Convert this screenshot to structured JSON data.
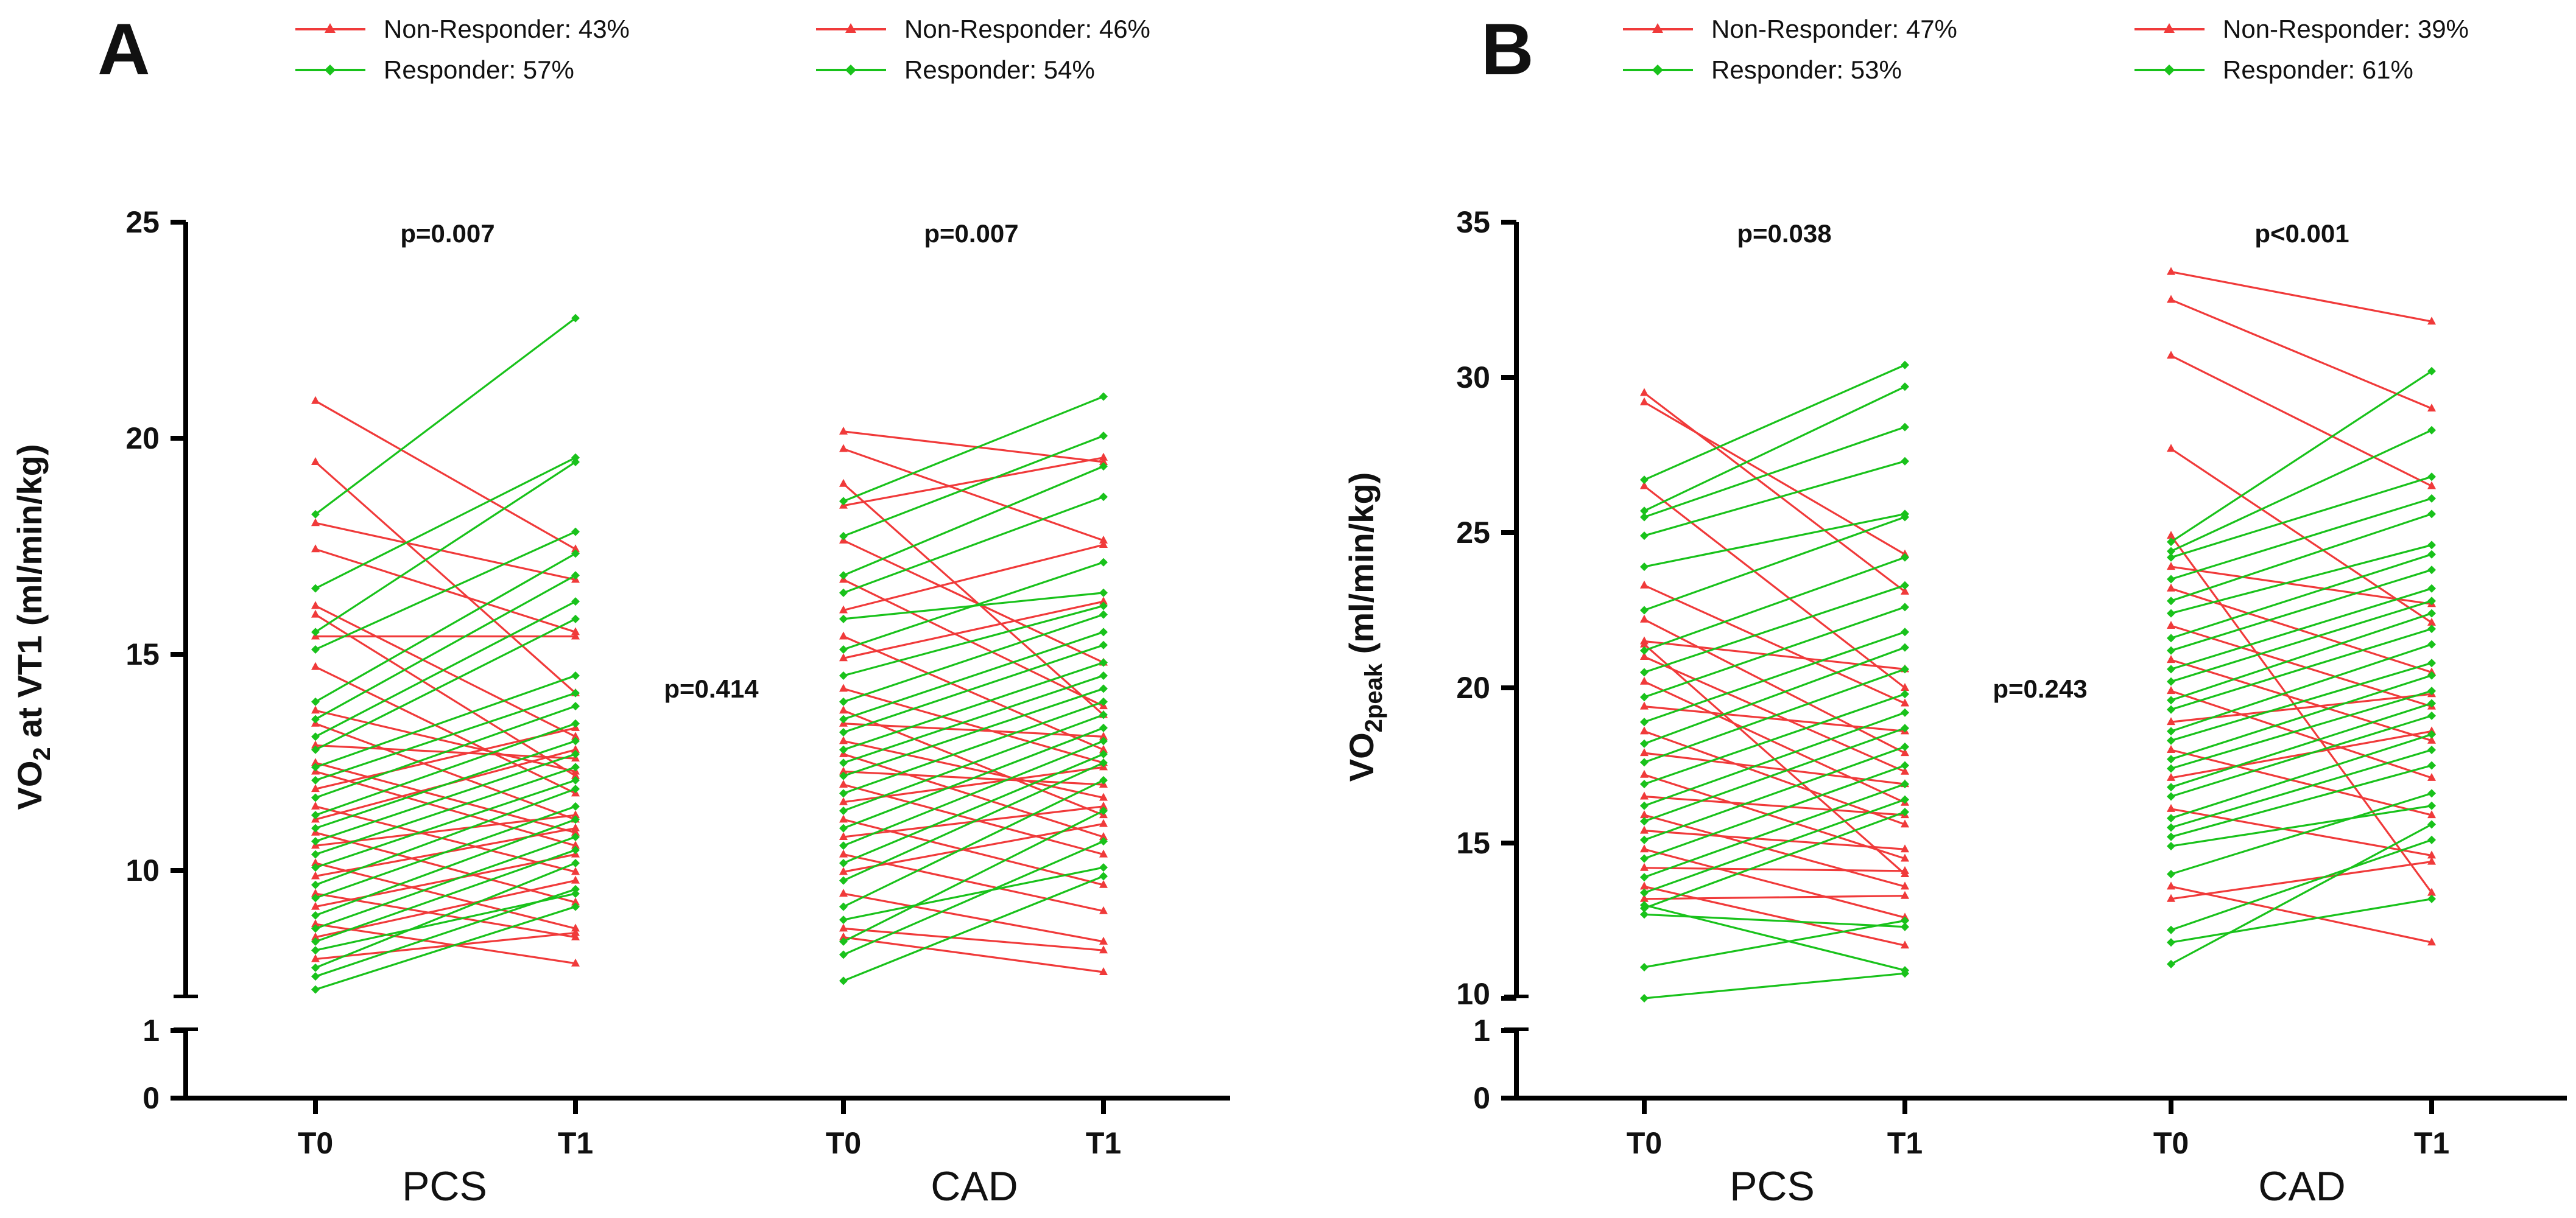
{
  "colors": {
    "responder": "#19c21b",
    "non_responder": "#f03a3a",
    "axis": "#000000"
  },
  "chart_data": [
    {
      "panel": "A",
      "type": "paired-line",
      "ylabel_pre": "VO",
      "ylabel_sub": "2",
      "ylabel_post": " at VT1 (ml/min/kg)",
      "yticks_upper": [
        "10",
        "15",
        "20",
        "25"
      ],
      "ylim_upper": [
        7.2,
        25
      ],
      "yticks_lower": [
        "0",
        "1"
      ],
      "xticks": [
        "T0",
        "T1",
        "T0",
        "T1"
      ],
      "groups": [
        "PCS",
        "CAD"
      ],
      "legend": [
        {
          "label": "Non-Responder: 43%",
          "type": "non_responder"
        },
        {
          "label": "Responder: 57%",
          "type": "responder"
        },
        {
          "label": "Non-Responder: 46%",
          "type": "non_responder"
        },
        {
          "label": "Responder: 54%",
          "type": "responder"
        }
      ],
      "pvalues": {
        "left": "p=0.007",
        "middle": "p=0.414",
        "right": "p=0.007"
      },
      "pcs_pairs": [
        {
          "t0": 20.9,
          "t1": 17.5,
          "r": 0
        },
        {
          "t0": 19.5,
          "t1": 14.2,
          "r": 0
        },
        {
          "t0": 18.3,
          "t1": 22.8,
          "r": 1
        },
        {
          "t0": 18.1,
          "t1": 16.8,
          "r": 0
        },
        {
          "t0": 17.5,
          "t1": 15.6,
          "r": 0
        },
        {
          "t0": 16.6,
          "t1": 19.6,
          "r": 1
        },
        {
          "t0": 16.2,
          "t1": 13.2,
          "r": 0
        },
        {
          "t0": 16.0,
          "t1": 12.3,
          "r": 0
        },
        {
          "t0": 15.6,
          "t1": 19.5,
          "r": 1
        },
        {
          "t0": 15.5,
          "t1": 15.5,
          "r": 0
        },
        {
          "t0": 15.2,
          "t1": 17.9,
          "r": 1
        },
        {
          "t0": 14.8,
          "t1": 11.9,
          "r": 0
        },
        {
          "t0": 14.0,
          "t1": 17.4,
          "r": 1
        },
        {
          "t0": 13.8,
          "t1": 12.4,
          "r": 0
        },
        {
          "t0": 13.6,
          "t1": 16.9,
          "r": 1
        },
        {
          "t0": 13.5,
          "t1": 11.3,
          "r": 0
        },
        {
          "t0": 13.2,
          "t1": 16.3,
          "r": 1
        },
        {
          "t0": 13.0,
          "t1": 12.7,
          "r": 0
        },
        {
          "t0": 12.9,
          "t1": 15.9,
          "r": 1
        },
        {
          "t0": 12.6,
          "t1": 11.0,
          "r": 0
        },
        {
          "t0": 12.5,
          "t1": 14.6,
          "r": 1
        },
        {
          "t0": 12.4,
          "t1": 10.7,
          "r": 0
        },
        {
          "t0": 12.2,
          "t1": 14.2,
          "r": 1
        },
        {
          "t0": 12.0,
          "t1": 13.4,
          "r": 0
        },
        {
          "t0": 11.8,
          "t1": 13.9,
          "r": 1
        },
        {
          "t0": 11.6,
          "t1": 10.1,
          "r": 0
        },
        {
          "t0": 11.4,
          "t1": 13.5,
          "r": 1
        },
        {
          "t0": 11.3,
          "t1": 12.9,
          "r": 0
        },
        {
          "t0": 11.1,
          "t1": 13.1,
          "r": 1
        },
        {
          "t0": 11.0,
          "t1": 9.4,
          "r": 0
        },
        {
          "t0": 10.8,
          "t1": 12.8,
          "r": 1
        },
        {
          "t0": 10.7,
          "t1": 11.4,
          "r": 0
        },
        {
          "t0": 10.5,
          "t1": 12.5,
          "r": 1
        },
        {
          "t0": 10.3,
          "t1": 8.8,
          "r": 0
        },
        {
          "t0": 10.2,
          "t1": 12.2,
          "r": 1
        },
        {
          "t0": 10.0,
          "t1": 11.1,
          "r": 0
        },
        {
          "t0": 9.8,
          "t1": 12.0,
          "r": 1
        },
        {
          "t0": 9.6,
          "t1": 8.6,
          "r": 0
        },
        {
          "t0": 9.5,
          "t1": 11.6,
          "r": 1
        },
        {
          "t0": 9.3,
          "t1": 10.5,
          "r": 0
        },
        {
          "t0": 9.1,
          "t1": 11.3,
          "r": 1
        },
        {
          "t0": 8.9,
          "t1": 8.0,
          "r": 0
        },
        {
          "t0": 8.8,
          "t1": 10.9,
          "r": 1
        },
        {
          "t0": 8.6,
          "t1": 9.9,
          "r": 0
        },
        {
          "t0": 8.5,
          "t1": 10.6,
          "r": 1
        },
        {
          "t0": 8.3,
          "t1": 9.6,
          "r": 1
        },
        {
          "t0": 8.1,
          "t1": 8.7,
          "r": 0
        },
        {
          "t0": 7.9,
          "t1": 10.3,
          "r": 1
        },
        {
          "t0": 7.7,
          "t1": 9.7,
          "r": 1
        },
        {
          "t0": 7.4,
          "t1": 9.3,
          "r": 1
        }
      ],
      "cad_pairs": [
        {
          "t0": 20.2,
          "t1": 19.5,
          "r": 0
        },
        {
          "t0": 19.8,
          "t1": 17.7,
          "r": 0
        },
        {
          "t0": 19.0,
          "t1": 13.7,
          "r": 0
        },
        {
          "t0": 18.6,
          "t1": 21.0,
          "r": 1
        },
        {
          "t0": 18.5,
          "t1": 19.6,
          "r": 0
        },
        {
          "t0": 17.8,
          "t1": 20.1,
          "r": 1
        },
        {
          "t0": 17.7,
          "t1": 14.9,
          "r": 0
        },
        {
          "t0": 16.9,
          "t1": 19.4,
          "r": 1
        },
        {
          "t0": 16.8,
          "t1": 13.9,
          "r": 0
        },
        {
          "t0": 16.5,
          "t1": 18.7,
          "r": 1
        },
        {
          "t0": 16.1,
          "t1": 17.6,
          "r": 0
        },
        {
          "t0": 15.9,
          "t1": 16.5,
          "r": 1
        },
        {
          "t0": 15.5,
          "t1": 12.9,
          "r": 0
        },
        {
          "t0": 15.2,
          "t1": 17.2,
          "r": 1
        },
        {
          "t0": 15.0,
          "t1": 16.3,
          "r": 0
        },
        {
          "t0": 14.6,
          "t1": 16.2,
          "r": 1
        },
        {
          "t0": 14.3,
          "t1": 12.6,
          "r": 0
        },
        {
          "t0": 14.0,
          "t1": 16.0,
          "r": 1
        },
        {
          "t0": 13.8,
          "t1": 11.4,
          "r": 0
        },
        {
          "t0": 13.6,
          "t1": 15.6,
          "r": 1
        },
        {
          "t0": 13.5,
          "t1": 13.2,
          "r": 0
        },
        {
          "t0": 13.3,
          "t1": 15.3,
          "r": 1
        },
        {
          "t0": 13.1,
          "t1": 11.8,
          "r": 0
        },
        {
          "t0": 12.9,
          "t1": 14.9,
          "r": 1
        },
        {
          "t0": 12.8,
          "t1": 10.9,
          "r": 0
        },
        {
          "t0": 12.6,
          "t1": 14.6,
          "r": 1
        },
        {
          "t0": 12.4,
          "t1": 12.1,
          "r": 0
        },
        {
          "t0": 12.3,
          "t1": 14.3,
          "r": 1
        },
        {
          "t0": 12.1,
          "t1": 10.5,
          "r": 0
        },
        {
          "t0": 11.9,
          "t1": 14.0,
          "r": 1
        },
        {
          "t0": 11.7,
          "t1": 12.5,
          "r": 0
        },
        {
          "t0": 11.5,
          "t1": 13.7,
          "r": 1
        },
        {
          "t0": 11.3,
          "t1": 9.8,
          "r": 0
        },
        {
          "t0": 11.1,
          "t1": 13.4,
          "r": 1
        },
        {
          "t0": 10.9,
          "t1": 11.6,
          "r": 0
        },
        {
          "t0": 10.7,
          "t1": 13.1,
          "r": 1
        },
        {
          "t0": 10.5,
          "t1": 9.2,
          "r": 0
        },
        {
          "t0": 10.3,
          "t1": 12.8,
          "r": 1
        },
        {
          "t0": 10.1,
          "t1": 11.2,
          "r": 0
        },
        {
          "t0": 9.9,
          "t1": 12.6,
          "r": 1
        },
        {
          "t0": 9.6,
          "t1": 8.5,
          "r": 0
        },
        {
          "t0": 9.3,
          "t1": 12.2,
          "r": 1
        },
        {
          "t0": 9.0,
          "t1": 10.2,
          "r": 1
        },
        {
          "t0": 8.8,
          "t1": 8.3,
          "r": 0
        },
        {
          "t0": 8.5,
          "t1": 11.5,
          "r": 1
        },
        {
          "t0": 8.2,
          "t1": 10.8,
          "r": 1
        },
        {
          "t0": 7.6,
          "t1": 10.0,
          "r": 1
        },
        {
          "t0": 8.6,
          "t1": 7.8,
          "r": 0
        }
      ]
    },
    {
      "panel": "B",
      "type": "paired-line",
      "ylabel_pre": "VO",
      "ylabel_sub": "2peak",
      "ylabel_post": " (ml/min/kg)",
      "yticks_upper": [
        "15",
        "20",
        "25",
        "30",
        "35"
      ],
      "ylim_upper": [
        10,
        35
      ],
      "yticks_lower": [
        "0",
        "1"
      ],
      "extra_upper_tick": "10",
      "xticks": [
        "T0",
        "T1",
        "T0",
        "T1"
      ],
      "groups": [
        "PCS",
        "CAD"
      ],
      "legend": [
        {
          "label": "Non-Responder: 47%",
          "type": "non_responder"
        },
        {
          "label": "Responder: 53%",
          "type": "responder"
        },
        {
          "label": "Non-Responder: 39%",
          "type": "non_responder"
        },
        {
          "label": "Responder: 61%",
          "type": "responder"
        }
      ],
      "pvalues": {
        "left": "p=0.038",
        "middle": "p=0.243",
        "right": "p<0.001"
      },
      "pcs_pairs": [
        {
          "t0": 29.5,
          "t1": 23.1,
          "r": 0
        },
        {
          "t0": 29.2,
          "t1": 24.3,
          "r": 0
        },
        {
          "t0": 26.7,
          "t1": 30.4,
          "r": 1
        },
        {
          "t0": 26.5,
          "t1": 20.0,
          "r": 0
        },
        {
          "t0": 25.7,
          "t1": 29.7,
          "r": 1
        },
        {
          "t0": 25.5,
          "t1": 28.4,
          "r": 1
        },
        {
          "t0": 24.9,
          "t1": 27.3,
          "r": 1
        },
        {
          "t0": 23.9,
          "t1": 25.6,
          "r": 1
        },
        {
          "t0": 23.3,
          "t1": 19.5,
          "r": 0
        },
        {
          "t0": 22.5,
          "t1": 25.5,
          "r": 1
        },
        {
          "t0": 22.2,
          "t1": 17.9,
          "r": 0
        },
        {
          "t0": 21.5,
          "t1": 20.6,
          "r": 0
        },
        {
          "t0": 21.2,
          "t1": 24.2,
          "r": 1
        },
        {
          "t0": 21.0,
          "t1": 17.3,
          "r": 0
        },
        {
          "t0": 20.5,
          "t1": 23.3,
          "r": 1
        },
        {
          "t0": 20.2,
          "t1": 16.3,
          "r": 0
        },
        {
          "t0": 19.7,
          "t1": 22.6,
          "r": 1
        },
        {
          "t0": 19.4,
          "t1": 18.6,
          "r": 0
        },
        {
          "t0": 18.9,
          "t1": 21.8,
          "r": 1
        },
        {
          "t0": 18.6,
          "t1": 15.6,
          "r": 0
        },
        {
          "t0": 18.2,
          "t1": 21.3,
          "r": 1
        },
        {
          "t0": 17.9,
          "t1": 16.9,
          "r": 0
        },
        {
          "t0": 17.6,
          "t1": 20.6,
          "r": 1
        },
        {
          "t0": 17.2,
          "t1": 14.5,
          "r": 0
        },
        {
          "t0": 16.9,
          "t1": 19.8,
          "r": 1
        },
        {
          "t0": 16.5,
          "t1": 15.9,
          "r": 0
        },
        {
          "t0": 16.2,
          "t1": 19.2,
          "r": 1
        },
        {
          "t0": 15.9,
          "t1": 13.6,
          "r": 0
        },
        {
          "t0": 15.7,
          "t1": 18.7,
          "r": 1
        },
        {
          "t0": 15.4,
          "t1": 14.8,
          "r": 0
        },
        {
          "t0": 15.1,
          "t1": 18.1,
          "r": 1
        },
        {
          "t0": 14.8,
          "t1": 12.6,
          "r": 0
        },
        {
          "t0": 14.5,
          "t1": 17.5,
          "r": 1
        },
        {
          "t0": 14.2,
          "t1": 14.1,
          "r": 0
        },
        {
          "t0": 13.9,
          "t1": 16.9,
          "r": 1
        },
        {
          "t0": 13.6,
          "t1": 11.7,
          "r": 0
        },
        {
          "t0": 13.4,
          "t1": 16.4,
          "r": 1
        },
        {
          "t0": 13.2,
          "t1": 13.3,
          "r": 0
        },
        {
          "t0": 12.9,
          "t1": 16.0,
          "r": 1
        },
        {
          "t0": 12.7,
          "t1": 12.3,
          "r": 1
        },
        {
          "t0": 11.0,
          "t1": 12.5,
          "r": 1
        },
        {
          "t0": 10.0,
          "t1": 10.8,
          "r": 1
        },
        {
          "t0": 13.0,
          "t1": 10.9,
          "r": 1
        },
        {
          "t0": 21.4,
          "t1": 14.0,
          "r": 0
        }
      ],
      "cad_pairs": [
        {
          "t0": 33.4,
          "t1": 31.8,
          "r": 0
        },
        {
          "t0": 32.5,
          "t1": 29.0,
          "r": 0
        },
        {
          "t0": 30.7,
          "t1": 26.5,
          "r": 0
        },
        {
          "t0": 27.7,
          "t1": 22.1,
          "r": 0
        },
        {
          "t0": 24.7,
          "t1": 30.2,
          "r": 1
        },
        {
          "t0": 24.4,
          "t1": 28.3,
          "r": 1
        },
        {
          "t0": 24.2,
          "t1": 26.8,
          "r": 1
        },
        {
          "t0": 23.9,
          "t1": 22.7,
          "r": 0
        },
        {
          "t0": 23.5,
          "t1": 26.1,
          "r": 1
        },
        {
          "t0": 23.2,
          "t1": 20.5,
          "r": 0
        },
        {
          "t0": 22.8,
          "t1": 25.6,
          "r": 1
        },
        {
          "t0": 22.4,
          "t1": 24.6,
          "r": 1
        },
        {
          "t0": 22.0,
          "t1": 19.4,
          "r": 0
        },
        {
          "t0": 21.6,
          "t1": 24.3,
          "r": 1
        },
        {
          "t0": 21.2,
          "t1": 23.8,
          "r": 1
        },
        {
          "t0": 20.9,
          "t1": 18.3,
          "r": 0
        },
        {
          "t0": 20.6,
          "t1": 23.2,
          "r": 1
        },
        {
          "t0": 20.2,
          "t1": 22.8,
          "r": 1
        },
        {
          "t0": 19.9,
          "t1": 17.1,
          "r": 0
        },
        {
          "t0": 19.6,
          "t1": 22.4,
          "r": 1
        },
        {
          "t0": 19.3,
          "t1": 21.9,
          "r": 1
        },
        {
          "t0": 18.9,
          "t1": 19.8,
          "r": 0
        },
        {
          "t0": 18.6,
          "t1": 21.4,
          "r": 1
        },
        {
          "t0": 18.3,
          "t1": 20.8,
          "r": 1
        },
        {
          "t0": 18.0,
          "t1": 15.9,
          "r": 0
        },
        {
          "t0": 17.7,
          "t1": 20.4,
          "r": 1
        },
        {
          "t0": 17.4,
          "t1": 19.9,
          "r": 1
        },
        {
          "t0": 17.1,
          "t1": 18.6,
          "r": 0
        },
        {
          "t0": 16.8,
          "t1": 19.5,
          "r": 1
        },
        {
          "t0": 16.5,
          "t1": 19.1,
          "r": 1
        },
        {
          "t0": 16.1,
          "t1": 14.6,
          "r": 0
        },
        {
          "t0": 15.8,
          "t1": 18.5,
          "r": 1
        },
        {
          "t0": 15.5,
          "t1": 18.0,
          "r": 1
        },
        {
          "t0": 15.2,
          "t1": 17.5,
          "r": 1
        },
        {
          "t0": 14.9,
          "t1": 16.2,
          "r": 1
        },
        {
          "t0": 13.6,
          "t1": 11.8,
          "r": 0
        },
        {
          "t0": 13.2,
          "t1": 14.4,
          "r": 0
        },
        {
          "t0": 12.2,
          "t1": 15.1,
          "r": 1
        },
        {
          "t0": 11.8,
          "t1": 13.2,
          "r": 1
        },
        {
          "t0": 11.1,
          "t1": 15.6,
          "r": 1
        },
        {
          "t0": 14.0,
          "t1": 16.6,
          "r": 1
        },
        {
          "t0": 24.9,
          "t1": 13.4,
          "r": 0
        }
      ]
    }
  ]
}
